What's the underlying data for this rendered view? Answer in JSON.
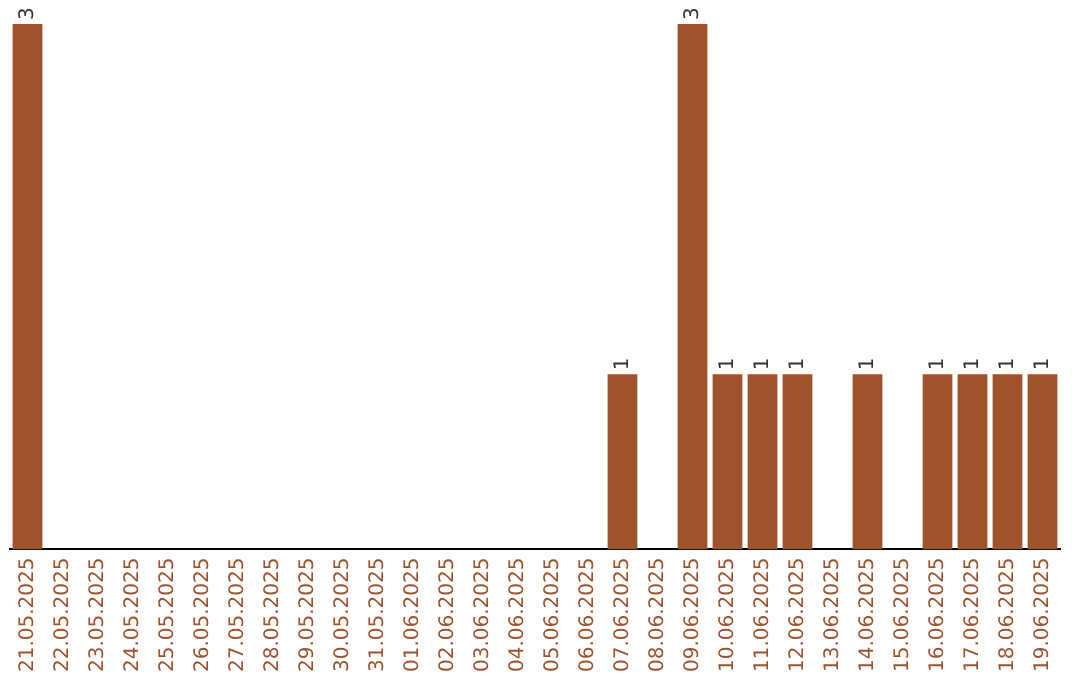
{
  "chart_data": {
    "type": "bar",
    "categories": [
      "21.05.2025",
      "22.05.2025",
      "23.05.2025",
      "24.05.2025",
      "25.05.2025",
      "26.05.2025",
      "27.05.2025",
      "28.05.2025",
      "29.05.2025",
      "30.05.2025",
      "31.05.2025",
      "01.06.2025",
      "02.06.2025",
      "03.06.2025",
      "04.06.2025",
      "05.06.2025",
      "06.06.2025",
      "07.06.2025",
      "08.06.2025",
      "09.06.2025",
      "10.06.2025",
      "11.06.2025",
      "12.06.2025",
      "13.06.2025",
      "14.06.2025",
      "15.06.2025",
      "16.06.2025",
      "17.06.2025",
      "18.06.2025",
      "19.06.2025"
    ],
    "values": [
      3,
      0,
      0,
      0,
      0,
      0,
      0,
      0,
      0,
      0,
      0,
      0,
      0,
      0,
      0,
      0,
      0,
      1,
      0,
      3,
      1,
      1,
      1,
      0,
      1,
      0,
      1,
      1,
      1,
      1
    ],
    "value_labels": [
      "3",
      null,
      null,
      null,
      null,
      null,
      null,
      null,
      null,
      null,
      null,
      null,
      null,
      null,
      null,
      null,
      null,
      "1",
      null,
      "3",
      "1",
      "1",
      "1",
      null,
      "1",
      null,
      "1",
      "1",
      "1",
      "1"
    ],
    "color": "#a0522d",
    "grid": false,
    "legend": false,
    "tick_labels": "x"
  }
}
